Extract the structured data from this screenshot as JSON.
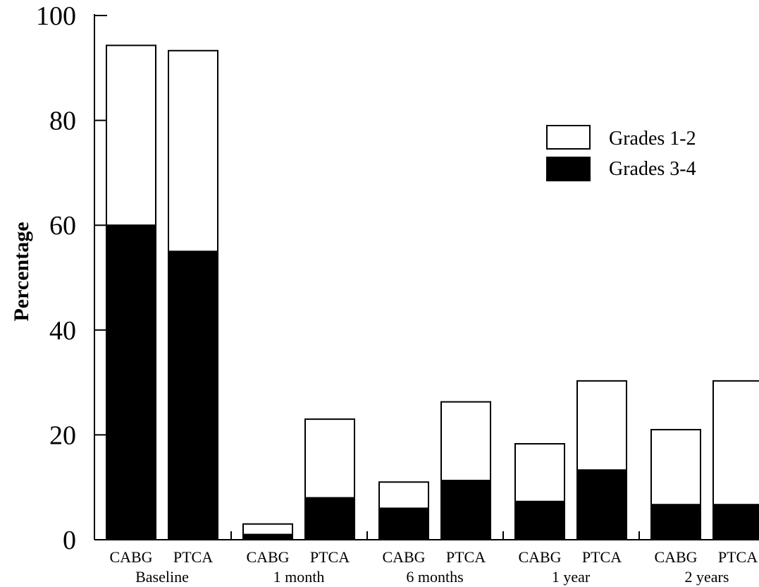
{
  "chart_data": {
    "type": "bar",
    "stacked": true,
    "title": "",
    "xlabel": "",
    "ylabel": "Percentage",
    "ylim": [
      0,
      100
    ],
    "yticks": [
      0,
      20,
      40,
      60,
      80,
      100
    ],
    "groups": [
      {
        "label": "Baseline",
        "bars": [
          {
            "label": "CABG",
            "grades_3_4": 60,
            "total": 94.3
          },
          {
            "label": "PTCA",
            "grades_3_4": 55,
            "total": 93.3
          }
        ]
      },
      {
        "label": "1 month",
        "bars": [
          {
            "label": "CABG",
            "grades_3_4": 1,
            "total": 3
          },
          {
            "label": "PTCA",
            "grades_3_4": 8,
            "total": 23
          }
        ]
      },
      {
        "label": "6 months",
        "bars": [
          {
            "label": "CABG",
            "grades_3_4": 6,
            "total": 11
          },
          {
            "label": "PTCA",
            "grades_3_4": 11.3,
            "total": 26.3
          }
        ]
      },
      {
        "label": "1 year",
        "bars": [
          {
            "label": "CABG",
            "grades_3_4": 7.3,
            "total": 18.3
          },
          {
            "label": "PTCA",
            "grades_3_4": 13.3,
            "total": 30.3
          }
        ]
      },
      {
        "label": "2 years",
        "bars": [
          {
            "label": "CABG",
            "grades_3_4": 6.7,
            "total": 21
          },
          {
            "label": "PTCA",
            "grades_3_4": 6.7,
            "total": 30.3
          }
        ]
      }
    ],
    "series": [
      {
        "name": "Grades 1-2",
        "color": "#ffffff"
      },
      {
        "name": "Grades 3-4",
        "color": "#000000"
      }
    ],
    "legend_position": "top-right",
    "grid": false
  }
}
